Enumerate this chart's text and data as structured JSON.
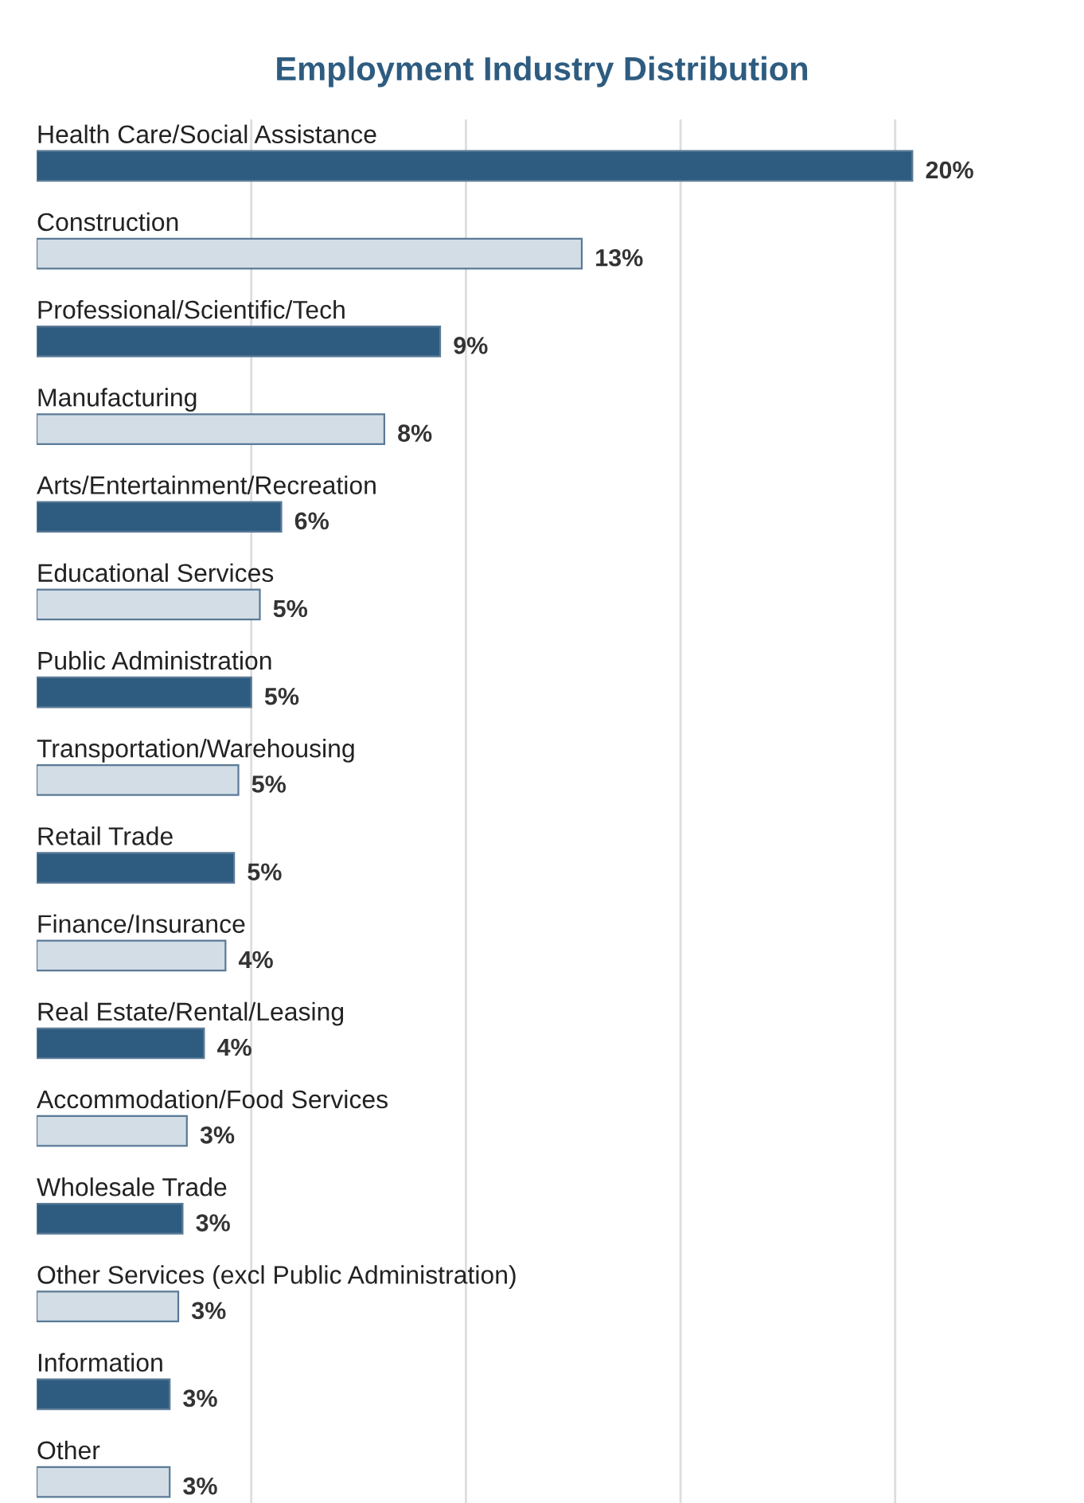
{
  "chart_data": {
    "type": "bar",
    "orientation": "horizontal",
    "title": "Employment Industry Distribution",
    "categories": [
      "Health Care/Social Assistance",
      "Construction",
      "Professional/Scientific/Tech",
      "Manufacturing",
      "Arts/Entertainment/Recreation",
      "Educational Services",
      "Public Administration",
      "Transportation/Warehousing",
      "Retail Trade",
      "Finance/Insurance",
      "Real Estate/Rental/Leasing",
      "Accommodation/Food Services",
      "Wholesale Trade",
      "Other Services (excl Public Administration)",
      "Information",
      "Other"
    ],
    "values": [
      20.4,
      12.7,
      9.4,
      8.1,
      5.7,
      5.2,
      5.0,
      4.7,
      4.6,
      4.4,
      3.9,
      3.5,
      3.4,
      3.3,
      3.1,
      3.1
    ],
    "value_labels": [
      "20%",
      "13%",
      "9%",
      "8%",
      "6%",
      "5%",
      "5%",
      "5%",
      "5%",
      "4%",
      "4%",
      "3%",
      "3%",
      "3%",
      "3%",
      "3%"
    ],
    "colors": [
      "#2e5c80",
      "#d3dde6",
      "#2e5c80",
      "#d3dde6",
      "#2e5c80",
      "#d3dde6",
      "#2e5c80",
      "#d3dde6",
      "#2e5c80",
      "#d3dde6",
      "#2e5c80",
      "#d3dde6",
      "#2e5c80",
      "#d3dde6",
      "#2e5c80",
      "#d3dde6"
    ],
    "xticks": [
      {
        "value": 5,
        "label": null
      },
      {
        "value": 10,
        "label": null
      },
      {
        "value": 15,
        "label": null
      },
      {
        "value": 20,
        "label": null
      }
    ],
    "grid": "x"
  }
}
